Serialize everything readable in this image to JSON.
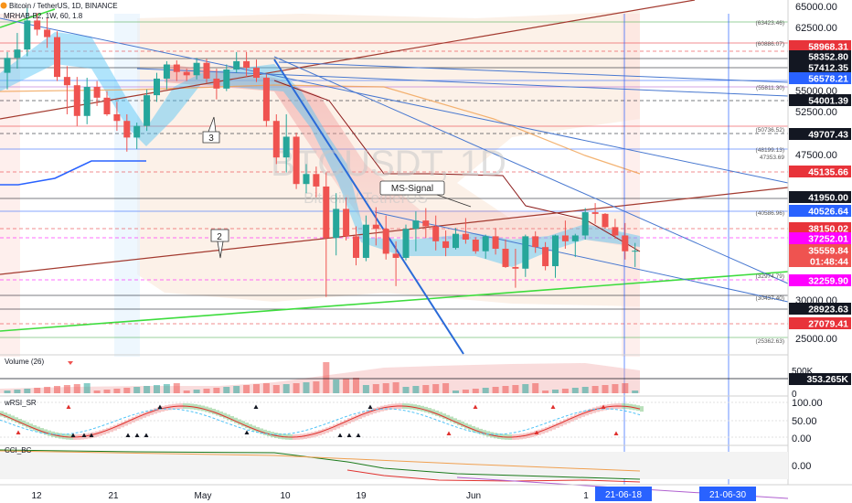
{
  "header": {
    "symbol_line": "Bitcoin / TetherUS, 1D, BINANCE",
    "indicator_line": "MRHAB-B2, 1W, 60, 1.8"
  },
  "watermark": {
    "ticker": "BTCUSDT, 1D",
    "name": "Bitcoin / TetherUS"
  },
  "annotations": {
    "wave_3": "3",
    "wave_2": "2",
    "ms_signal": "MS-Signal"
  },
  "price_axis": {
    "ticks": [
      "65000.00",
      "62500.00",
      "55000.00",
      "52500.00",
      "47500.00",
      "42500.00",
      "30000.00",
      "25000.00"
    ],
    "level_labels": [
      "(63423.46)",
      "(60886.07)",
      "(55811.30)",
      "(50736.52)",
      "(48199.13)",
      "47353.69",
      "(40586.96)",
      "(32974.79)",
      "(30437.40)",
      "(25362.63)"
    ],
    "tags": [
      {
        "text": "58968.31",
        "bg": "#e8333a",
        "fg": "#ffffff"
      },
      {
        "text": "58352.80",
        "bg": "#131722",
        "fg": "#ffffff"
      },
      {
        "text": "57412.35",
        "bg": "#131722",
        "fg": "#ffffff"
      },
      {
        "text": "56578.21",
        "bg": "#2962ff",
        "fg": "#ffffff"
      },
      {
        "text": "54001.39",
        "bg": "#131722",
        "fg": "#ffffff"
      },
      {
        "text": "49707.43",
        "bg": "#131722",
        "fg": "#ffffff"
      },
      {
        "text": "45135.66",
        "bg": "#e8333a",
        "fg": "#ffffff"
      },
      {
        "text": "41950.00",
        "bg": "#131722",
        "fg": "#ffffff"
      },
      {
        "text": "40526.64",
        "bg": "#2962ff",
        "fg": "#ffffff"
      },
      {
        "text": "38150.02",
        "bg": "#e8333a",
        "fg": "#ffffff"
      },
      {
        "text": "37252.01",
        "bg": "#ff00ff",
        "fg": "#ffffff"
      },
      {
        "text": "35559.84",
        "bg": "#ef5350",
        "fg": "#ffffff"
      },
      {
        "text": "01:48:44",
        "bg": "#ef5350",
        "fg": "#ffffff"
      },
      {
        "text": "32259.90",
        "bg": "#ff00ff",
        "fg": "#ffffff"
      },
      {
        "text": "28923.63",
        "bg": "#131722",
        "fg": "#ffffff"
      },
      {
        "text": "27079.41",
        "bg": "#e8333a",
        "fg": "#ffffff"
      }
    ]
  },
  "volume_pane": {
    "title": "Volume (26)",
    "ticks": [
      "500K",
      "0"
    ],
    "tag": "353.265K"
  },
  "wrsi_pane": {
    "title": "wRSI_SR",
    "ticks": [
      "100.00",
      "50.00",
      "0.00"
    ]
  },
  "cci_pane": {
    "title": "CCI_BC",
    "ticks": [
      "0.00"
    ]
  },
  "time_axis": {
    "labels": [
      "12",
      "21",
      "May",
      "10",
      "19",
      "Jun",
      "1"
    ],
    "date_tags": [
      "21-06-18",
      "21-06-30"
    ]
  },
  "colors": {
    "up": "#26a69a",
    "down": "#ef5350",
    "blue_band": "#4fc3f7",
    "red_band": "#ef9a9a",
    "trend_blue": "#4878d0",
    "trend_red": "#a33a2f",
    "trend_green": "#3ddc3d",
    "accent_blue": "#2962ff"
  },
  "chart_data": {
    "type": "candlestick",
    "title": "Bitcoin / TetherUS, 1D, BINANCE",
    "xlabel": "",
    "ylabel": "",
    "ylim": [
      22000,
      66000
    ],
    "x_ticks": [
      "12",
      "21",
      "May",
      "10",
      "19",
      "Jun",
      "1"
    ],
    "candles": [
      [
        57000,
        59500,
        55000,
        58800
      ],
      [
        58800,
        61800,
        57500,
        59800
      ],
      [
        59800,
        64800,
        59000,
        63300
      ],
      [
        63300,
        64200,
        61500,
        62200
      ],
      [
        62200,
        63600,
        60000,
        61300
      ],
      [
        61300,
        62000,
        56000,
        56500
      ],
      [
        56500,
        57800,
        52000,
        55500
      ],
      [
        55500,
        56500,
        50600,
        51800
      ],
      [
        51800,
        56400,
        50800,
        55300
      ],
      [
        55300,
        56000,
        53000,
        54000
      ],
      [
        54000,
        54800,
        51800,
        52000
      ],
      [
        52000,
        53500,
        50000,
        51200
      ],
      [
        51200,
        52000,
        47500,
        49200
      ],
      [
        49200,
        51000,
        47800,
        50600
      ],
      [
        50600,
        55000,
        50000,
        54300
      ],
      [
        54300,
        57000,
        53500,
        56300
      ],
      [
        56300,
        58400,
        55000,
        58000
      ],
      [
        58000,
        58500,
        56000,
        57100
      ],
      [
        57100,
        57500,
        56000,
        56700
      ],
      [
        56700,
        58800,
        56200,
        58200
      ],
      [
        58200,
        58700,
        55800,
        56300
      ],
      [
        56300,
        57500,
        53800,
        55100
      ],
      [
        55100,
        58000,
        54800,
        57400
      ],
      [
        57400,
        59500,
        57000,
        58400
      ],
      [
        58400,
        59500,
        56500,
        57600
      ],
      [
        57600,
        58600,
        55900,
        56400
      ],
      [
        56400,
        56800,
        50500,
        51200
      ],
      [
        51200,
        52000,
        46000,
        46800
      ],
      [
        46800,
        52000,
        45000,
        49300
      ],
      [
        49300,
        49800,
        43000,
        43600
      ],
      [
        43600,
        46000,
        42500,
        44800
      ],
      [
        44800,
        45700,
        42000,
        43300
      ],
      [
        43300,
        45000,
        30000,
        37100
      ],
      [
        37100,
        42500,
        35000,
        40600
      ],
      [
        40600,
        42000,
        36800,
        37300
      ],
      [
        37300,
        38500,
        33800,
        34700
      ],
      [
        34700,
        39800,
        34300,
        38700
      ],
      [
        38700,
        40800,
        36200,
        38200
      ],
      [
        38200,
        39800,
        34500,
        35200
      ],
      [
        35200,
        36700,
        31300,
        34700
      ],
      [
        34700,
        38700,
        34400,
        38200
      ],
      [
        38200,
        40300,
        35500,
        39200
      ],
      [
        39200,
        40700,
        37100,
        38500
      ],
      [
        38500,
        39800,
        35600,
        36700
      ],
      [
        36700,
        38000,
        34900,
        35900
      ],
      [
        35900,
        38300,
        35700,
        37600
      ],
      [
        37600,
        39500,
        36400,
        36900
      ],
      [
        36900,
        37200,
        35200,
        35500
      ],
      [
        35500,
        37500,
        34600,
        37300
      ],
      [
        37300,
        38300,
        35100,
        35800
      ],
      [
        35800,
        36900,
        33500,
        33600
      ],
      [
        33600,
        35800,
        31100,
        33400
      ],
      [
        33400,
        37500,
        32400,
        37300
      ],
      [
        37300,
        37900,
        35300,
        36000
      ],
      [
        36000,
        36600,
        33200,
        33700
      ],
      [
        33700,
        37500,
        32300,
        37400
      ],
      [
        37400,
        39200,
        35800,
        36700
      ],
      [
        36700,
        37600,
        34800,
        37400
      ],
      [
        37400,
        40700,
        36900,
        40200
      ],
      [
        40200,
        41300,
        38800,
        40000
      ],
      [
        40000,
        40100,
        38200,
        38400
      ],
      [
        38400,
        39400,
        37000,
        37400
      ],
      [
        37400,
        38900,
        34500,
        35500
      ],
      [
        35500,
        36500,
        33600,
        35560
      ]
    ]
  }
}
